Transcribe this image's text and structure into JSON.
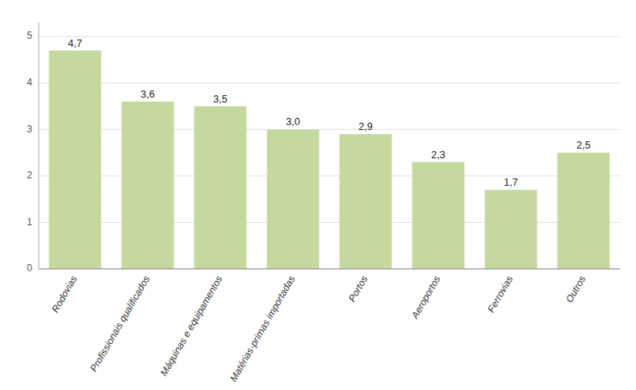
{
  "chart_data": {
    "type": "bar",
    "categories": [
      "Rodovias",
      "Profissionais qualificados",
      "Máquinas e equipamentos",
      "Matérias-primas importadas",
      "Portos",
      "Aeroportos",
      "Ferrovias",
      "Outros"
    ],
    "values": [
      4.7,
      3.6,
      3.5,
      3.0,
      2.9,
      2.3,
      1.7,
      2.5
    ],
    "value_labels": [
      "4,7",
      "3,6",
      "3,5",
      "3,0",
      "2,9",
      "2,3",
      "1,7",
      "2,5"
    ],
    "data_labels": true,
    "color": "#c5d89d",
    "ylim": [
      0,
      5.3
    ],
    "yticks": [
      0,
      1,
      2,
      3,
      4,
      5
    ],
    "grid": true
  }
}
